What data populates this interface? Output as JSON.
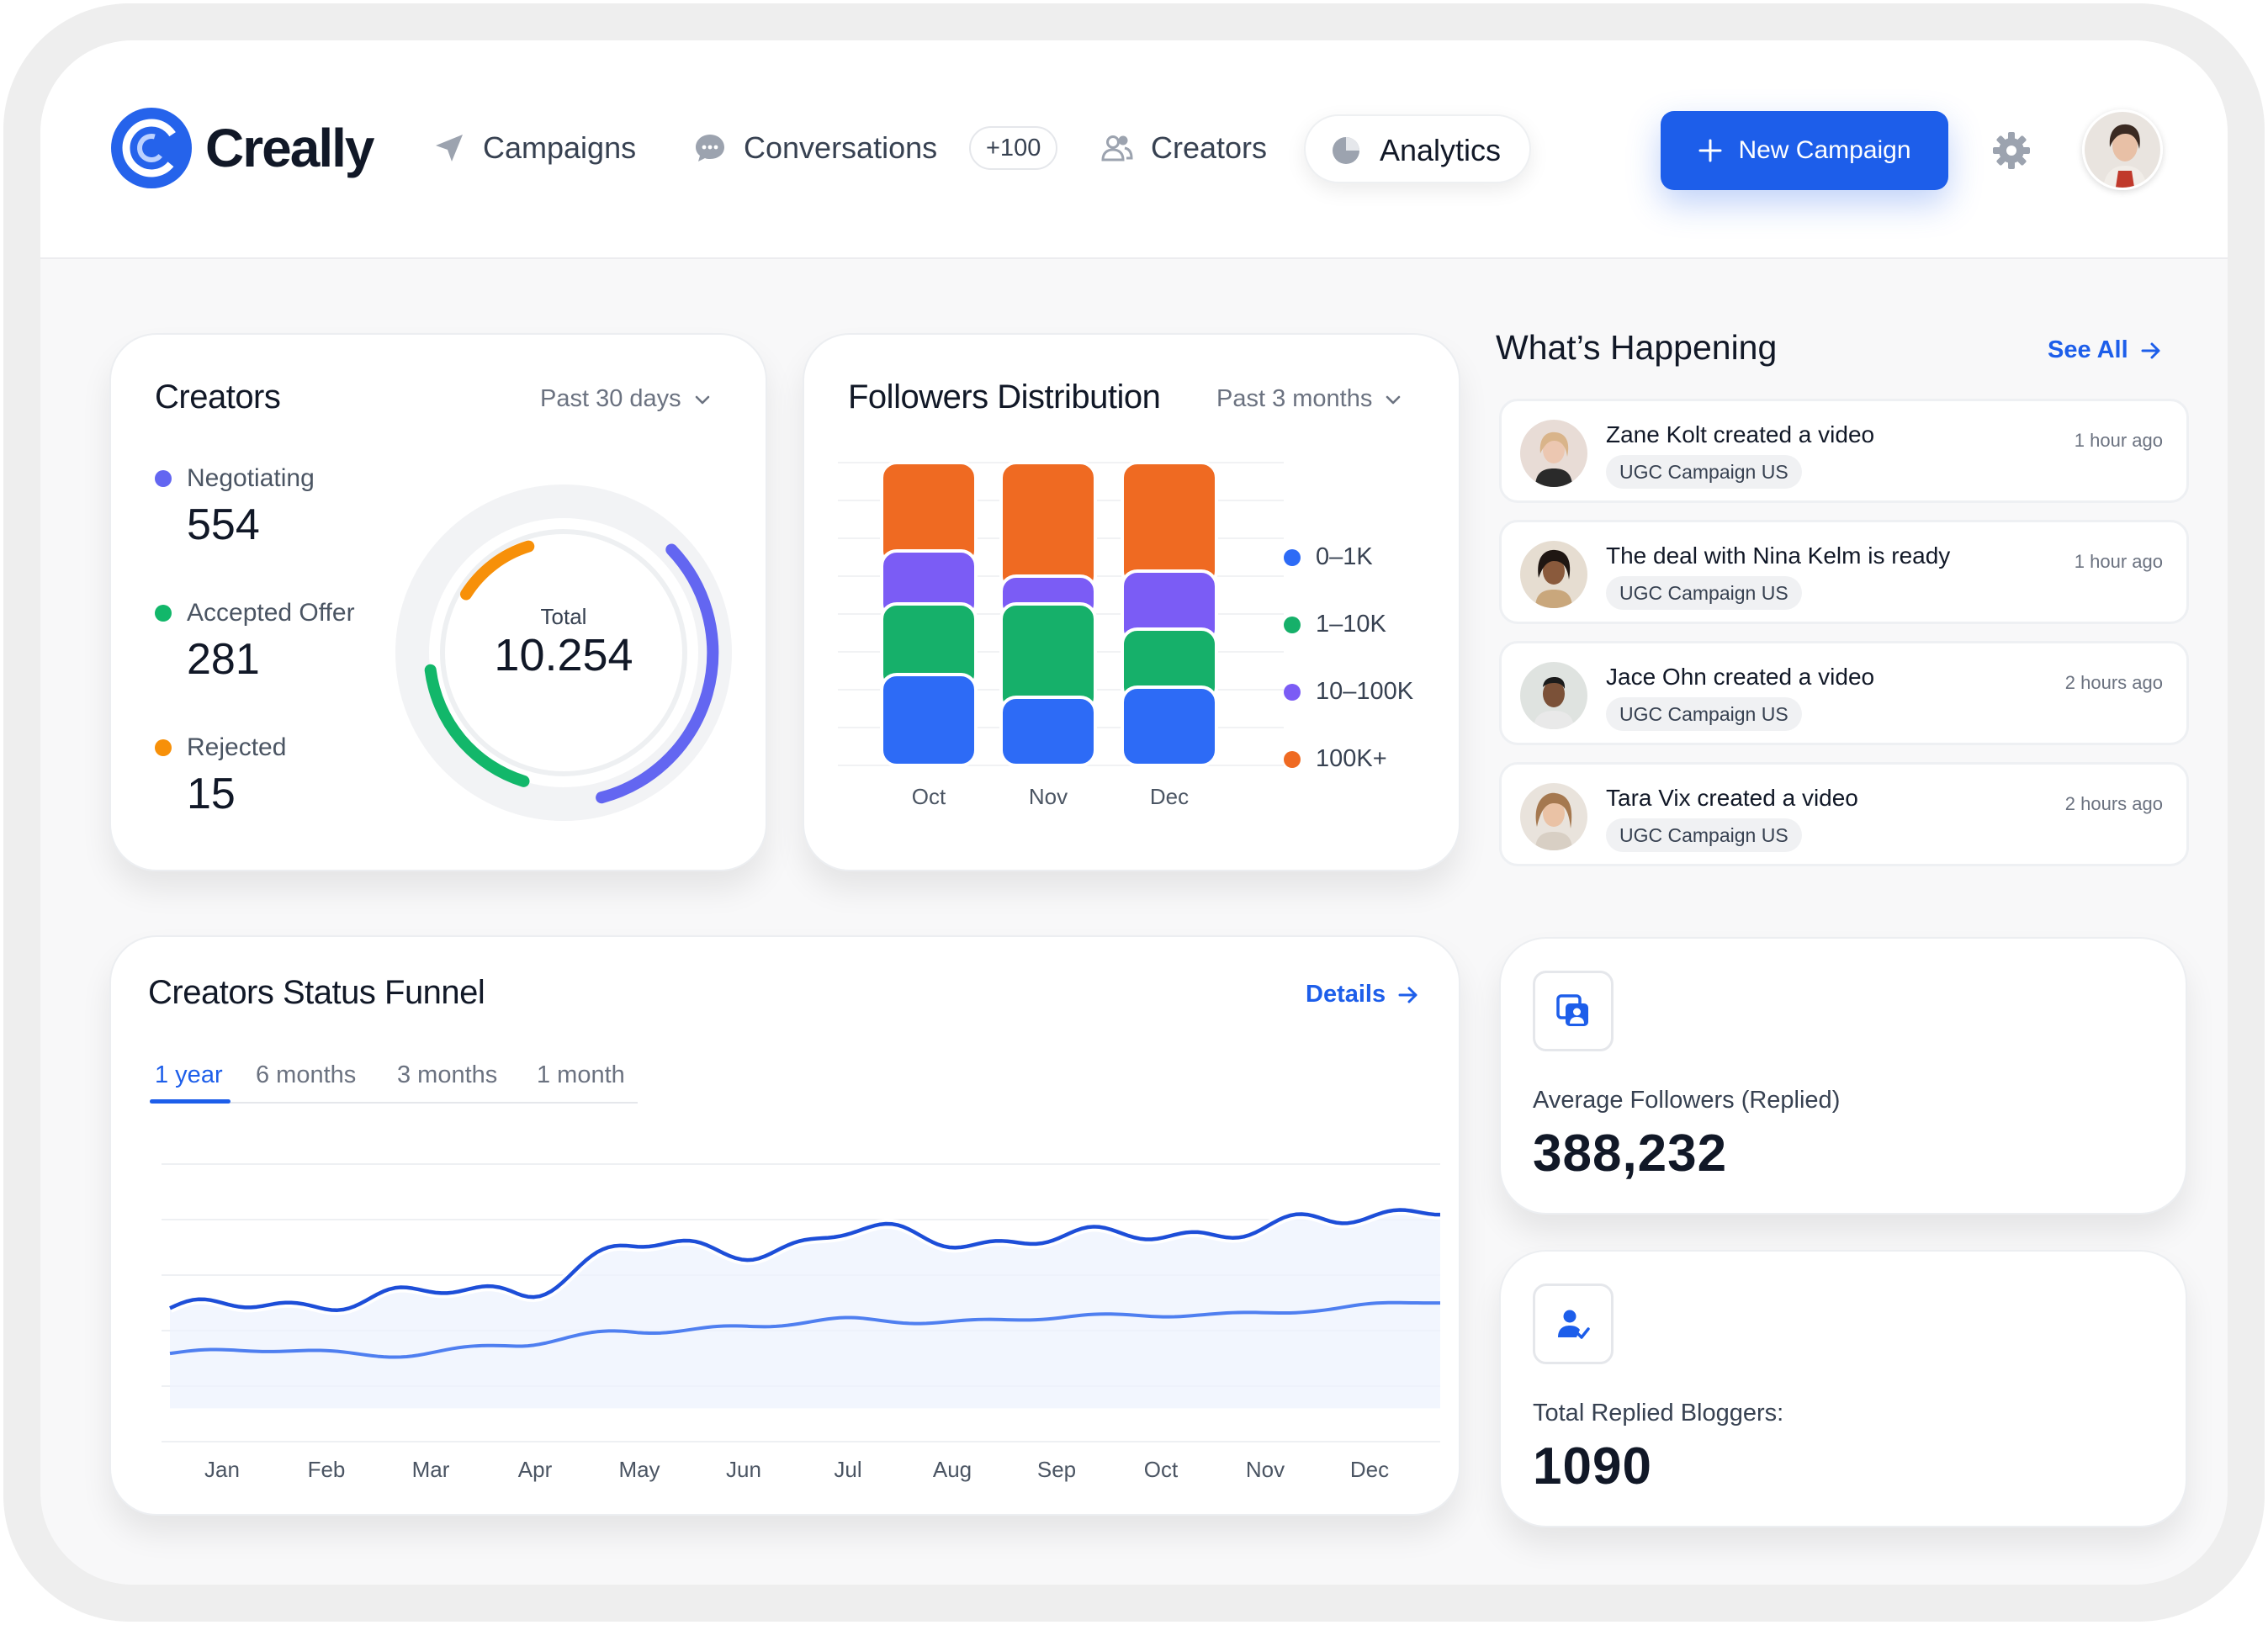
{
  "app": {
    "brand": "Creally"
  },
  "nav": {
    "campaigns": "Campaigns",
    "conversations": "Conversations",
    "conversations_badge": "+100",
    "creators": "Creators",
    "analytics": "Analytics",
    "new_campaign": "New Campaign"
  },
  "creators_card": {
    "title": "Creators",
    "period": "Past 30 days",
    "stats": [
      {
        "label": "Negotiating",
        "value": "554",
        "color": "#6366f1"
      },
      {
        "label": "Accepted Offer",
        "value": "281",
        "color": "#12b76a"
      },
      {
        "label": "Rejected",
        "value": "15",
        "color": "#f79009"
      }
    ],
    "total_caption": "Total",
    "total_value": "10.254"
  },
  "followers_card": {
    "title": "Followers Distribution",
    "period": "Past 3 months",
    "legend": [
      {
        "label": "0–1K",
        "color": "#2d6bf6"
      },
      {
        "label": "1–10K",
        "color": "#16b06a"
      },
      {
        "label": "10–100K",
        "color": "#7b5cf5"
      },
      {
        "label": "100K+",
        "color": "#ef6a22"
      }
    ]
  },
  "chart_data": [
    {
      "type": "bar",
      "stacked": true,
      "categories": [
        "Oct",
        "Nov",
        "Dec"
      ],
      "series": [
        {
          "name": "0–1K",
          "color": "#2d6bf6",
          "values": [
            36,
            27,
            31
          ]
        },
        {
          "name": "1–10K",
          "color": "#16b06a",
          "values": [
            28,
            37,
            23
          ]
        },
        {
          "name": "10–100K",
          "color": "#7b5cf5",
          "values": [
            21,
            11,
            23
          ]
        },
        {
          "name": "100K+",
          "color": "#ef6a22",
          "values": [
            35,
            45,
            43
          ]
        }
      ],
      "ylim": [
        0,
        120
      ]
    },
    {
      "type": "line",
      "x": [
        "Jan",
        "Feb",
        "Mar",
        "Apr",
        "May",
        "Jun",
        "Jul",
        "Aug",
        "Sep",
        "Oct",
        "Nov",
        "Dec"
      ],
      "series": [
        {
          "color": "#1d4ed8",
          "values": [
            56,
            57,
            62,
            63,
            82,
            80,
            88,
            84,
            86,
            88,
            92,
            99
          ]
        },
        {
          "color": "#4f7ff0",
          "values": [
            37,
            38,
            37,
            40,
            47,
            48,
            51,
            51,
            52,
            54,
            55,
            59
          ]
        }
      ],
      "ylim": [
        0,
        120
      ],
      "grid": true
    }
  ],
  "whats_happening": {
    "title": "What’s Happening",
    "see_all": "See All",
    "items": [
      {
        "text": "Zane Kolt created a video",
        "tag": "UGC Campaign US",
        "time": "1 hour ago"
      },
      {
        "text": "The deal with Nina Kelm is ready",
        "tag": "UGC Campaign US",
        "time": "1 hour ago"
      },
      {
        "text": "Jace Ohn created a video",
        "tag": "UGC Campaign US",
        "time": "2 hours ago"
      },
      {
        "text": "Tara Vix created a video",
        "tag": "UGC Campaign US",
        "time": "2 hours ago"
      }
    ]
  },
  "funnel_card": {
    "title": "Creators Status Funnel",
    "details": "Details",
    "tabs": [
      "1 year",
      "6 months",
      "3 months",
      "1 month"
    ],
    "active_tab": "1 year",
    "months": [
      "Jan",
      "Feb",
      "Mar",
      "Apr",
      "May",
      "Jun",
      "Jul",
      "Aug",
      "Sep",
      "Oct",
      "Nov",
      "Dec"
    ]
  },
  "metrics": {
    "avg_followers_label": "Average Followers (Replied)",
    "avg_followers_value": "388,232",
    "total_replied_label": "Total Replied Bloggers:",
    "total_replied_value": "1090"
  }
}
